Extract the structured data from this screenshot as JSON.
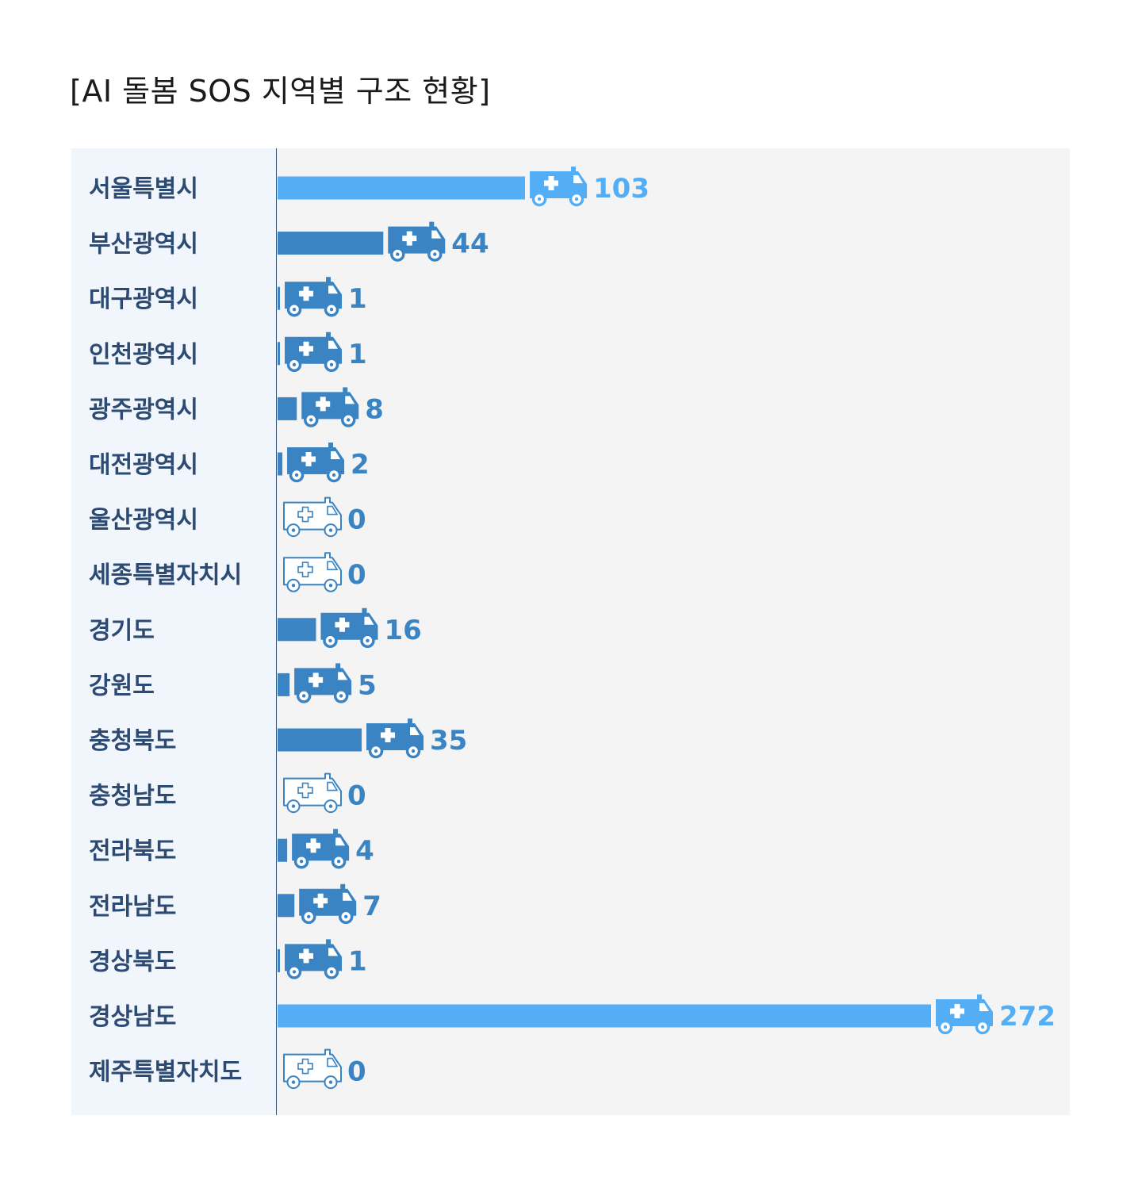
{
  "title": "[AI 돌봄 SOS 지역별 구조 현황]",
  "colors": {
    "highlight": "#53aef6",
    "normal": "#3a84c4",
    "empty_outline": "#3a84c4",
    "label_text": "#2d4a73",
    "label_bg": "#f0f6fb",
    "plot_bg": "#f4f4f4"
  },
  "icon": "ambulance-icon",
  "chart_data": {
    "type": "bar",
    "orientation": "horizontal",
    "title": "[AI 돌봄 SOS 지역별 구조 현황]",
    "xlabel": "",
    "ylabel": "",
    "grid": false,
    "categories": [
      "서울특별시",
      "부산광역시",
      "대구광역시",
      "인천광역시",
      "광주광역시",
      "대전광역시",
      "울산광역시",
      "세종특별자치시",
      "경기도",
      "강원도",
      "충청북도",
      "충청남도",
      "전라북도",
      "전라남도",
      "경상북도",
      "경상남도",
      "제주특별자치도"
    ],
    "values": [
      103,
      44,
      1,
      1,
      8,
      2,
      0,
      0,
      16,
      5,
      35,
      0,
      4,
      7,
      1,
      272,
      0
    ],
    "highlighted": [
      "서울특별시",
      "경상남도"
    ],
    "xlim": [
      0,
      272
    ]
  }
}
